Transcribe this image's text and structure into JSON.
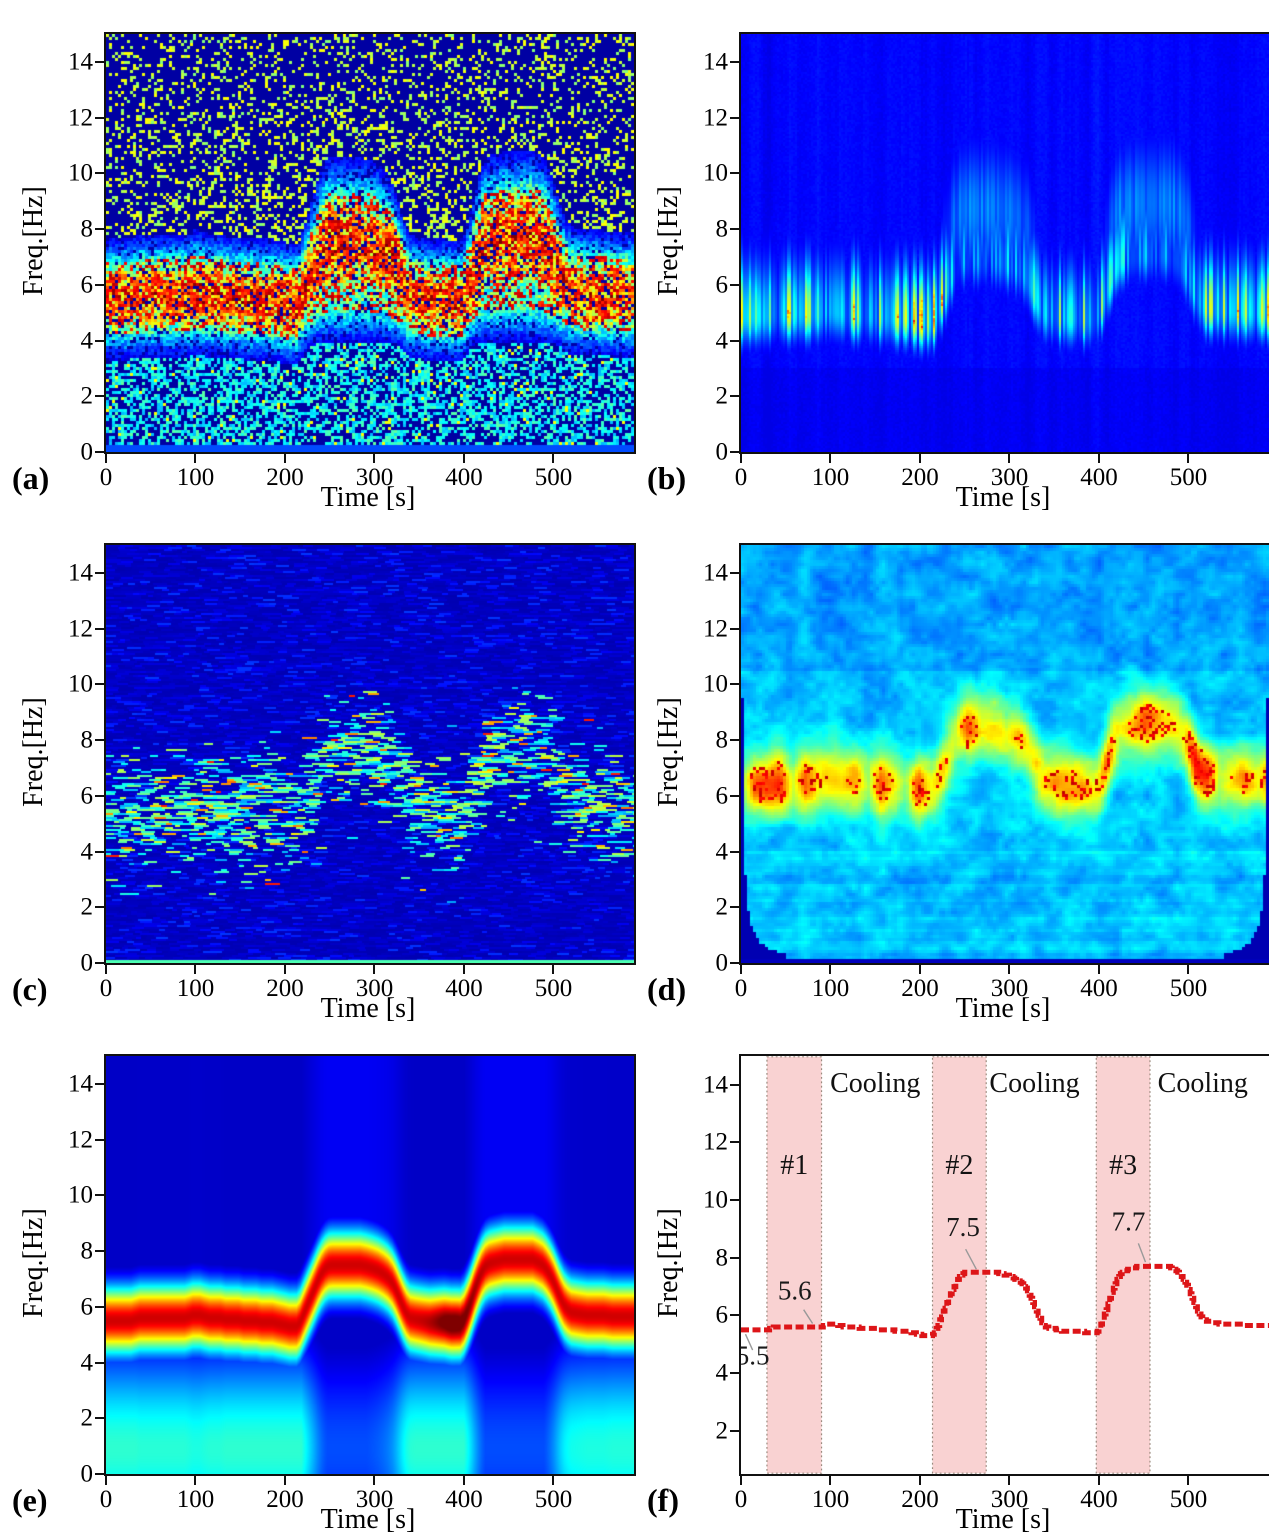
{
  "chart_data": {
    "shared": {
      "xlabel": "Time [s]",
      "ylabel": "Freq.[Hz]",
      "xlim": [
        0,
        590
      ],
      "ylim": [
        0,
        15
      ],
      "xticks": [
        0,
        100,
        200,
        300,
        400,
        500
      ],
      "yticks": [
        0,
        2,
        4,
        6,
        8,
        10,
        12,
        14
      ],
      "colormap": "jet",
      "freq_curve": [
        [
          0,
          5.5
        ],
        [
          28,
          5.5
        ],
        [
          33,
          5.55
        ],
        [
          38,
          5.6
        ],
        [
          88,
          5.6
        ],
        [
          93,
          5.65
        ],
        [
          97,
          5.7
        ],
        [
          105,
          5.7
        ],
        [
          110,
          5.65
        ],
        [
          116,
          5.6
        ],
        [
          128,
          5.6
        ],
        [
          134,
          5.55
        ],
        [
          148,
          5.55
        ],
        [
          154,
          5.5
        ],
        [
          168,
          5.5
        ],
        [
          174,
          5.45
        ],
        [
          186,
          5.45
        ],
        [
          192,
          5.4
        ],
        [
          199,
          5.35
        ],
        [
          205,
          5.3
        ],
        [
          213,
          5.3
        ],
        [
          217,
          5.45
        ],
        [
          221,
          5.75
        ],
        [
          225,
          6.05
        ],
        [
          229,
          6.35
        ],
        [
          233,
          6.65
        ],
        [
          237,
          6.95
        ],
        [
          241,
          7.2
        ],
        [
          245,
          7.38
        ],
        [
          249,
          7.48
        ],
        [
          253,
          7.5
        ],
        [
          284,
          7.5
        ],
        [
          291,
          7.45
        ],
        [
          298,
          7.38
        ],
        [
          304,
          7.3
        ],
        [
          310,
          7.18
        ],
        [
          315,
          7.05
        ],
        [
          320,
          6.85
        ],
        [
          324,
          6.6
        ],
        [
          328,
          6.3
        ],
        [
          332,
          6.0
        ],
        [
          336,
          5.75
        ],
        [
          340,
          5.6
        ],
        [
          346,
          5.55
        ],
        [
          354,
          5.5
        ],
        [
          362,
          5.45
        ],
        [
          378,
          5.45
        ],
        [
          386,
          5.4
        ],
        [
          396,
          5.4
        ],
        [
          400,
          5.55
        ],
        [
          404,
          5.85
        ],
        [
          408,
          6.2
        ],
        [
          412,
          6.6
        ],
        [
          416,
          6.95
        ],
        [
          420,
          7.25
        ],
        [
          424,
          7.45
        ],
        [
          428,
          7.55
        ],
        [
          433,
          7.6
        ],
        [
          439,
          7.65
        ],
        [
          445,
          7.7
        ],
        [
          477,
          7.7
        ],
        [
          483,
          7.6
        ],
        [
          488,
          7.5
        ],
        [
          492,
          7.35
        ],
        [
          496,
          7.15
        ],
        [
          500,
          6.9
        ],
        [
          504,
          6.6
        ],
        [
          508,
          6.3
        ],
        [
          512,
          6.05
        ],
        [
          516,
          5.9
        ],
        [
          520,
          5.8
        ],
        [
          528,
          5.75
        ],
        [
          538,
          5.7
        ],
        [
          556,
          5.7
        ],
        [
          566,
          5.65
        ],
        [
          590,
          5.65
        ]
      ]
    },
    "panels": [
      {
        "letter": "(a)",
        "type": "heatmap",
        "style": "stft_speckle",
        "xlabel": "Time [s]",
        "ylabel": "Freq.[Hz]"
      },
      {
        "letter": "(b)",
        "type": "heatmap",
        "style": "vertical_streaks",
        "xlabel": "Time [s]",
        "ylabel": "Freq.[Hz]"
      },
      {
        "letter": "(c)",
        "type": "heatmap",
        "style": "horizontal_streaks",
        "xlabel": "Time [s]",
        "ylabel": "Freq.[Hz]"
      },
      {
        "letter": "(d)",
        "type": "heatmap",
        "style": "wavelet_blobs",
        "xlabel": "Time [s]",
        "ylabel": "Freq.[Hz]"
      },
      {
        "letter": "(e)",
        "type": "heatmap",
        "style": "smooth_ridge",
        "xlabel": "Time [s]",
        "ylabel": "Freq.[Hz]"
      },
      {
        "letter": "(f)",
        "type": "line",
        "style": "line_steps",
        "xlabel": "Time [s]",
        "ylabel": "Freq.[Hz]",
        "ylim": [
          0.5,
          15
        ],
        "yticks": [
          2,
          4,
          6,
          8,
          10,
          12,
          14
        ],
        "bands": [
          {
            "label": "#1",
            "t_start": 29,
            "t_end": 90
          },
          {
            "label": "#2",
            "t_start": 214,
            "t_end": 274
          },
          {
            "label": "#3",
            "t_start": 397,
            "t_end": 457
          }
        ],
        "band_label_freq": 10.9,
        "cooling_labels": [
          {
            "text": "Cooling",
            "t": 150,
            "freq": 13.75
          },
          {
            "text": "Cooling",
            "t": 328,
            "freq": 13.75
          },
          {
            "text": "Cooling",
            "t": 516,
            "freq": 13.75
          }
        ],
        "annotations": [
          {
            "text": "5.5",
            "t": 13,
            "freq": 4.3,
            "leader": [
              [
                5,
                5.35
              ],
              [
                13,
                4.8
              ]
            ]
          },
          {
            "text": "5.6",
            "t": 60,
            "freq": 6.55,
            "leader": [
              [
                70,
                6.2
              ],
              [
                80,
                5.72
              ]
            ]
          },
          {
            "text": "7.5",
            "t": 248,
            "freq": 8.75,
            "leader": [
              [
                251,
                8.3
              ],
              [
                263,
                7.6
              ]
            ]
          },
          {
            "text": "7.7",
            "t": 433,
            "freq": 8.95,
            "leader": [
              [
                444,
                8.5
              ],
              [
                452,
                7.85
              ]
            ]
          }
        ],
        "colors": {
          "line": "#dd1518",
          "band_fill": "#f9d2d2",
          "band_edge": "#9a8a7e",
          "leader": "#999999",
          "frame": "#111111"
        }
      }
    ]
  }
}
